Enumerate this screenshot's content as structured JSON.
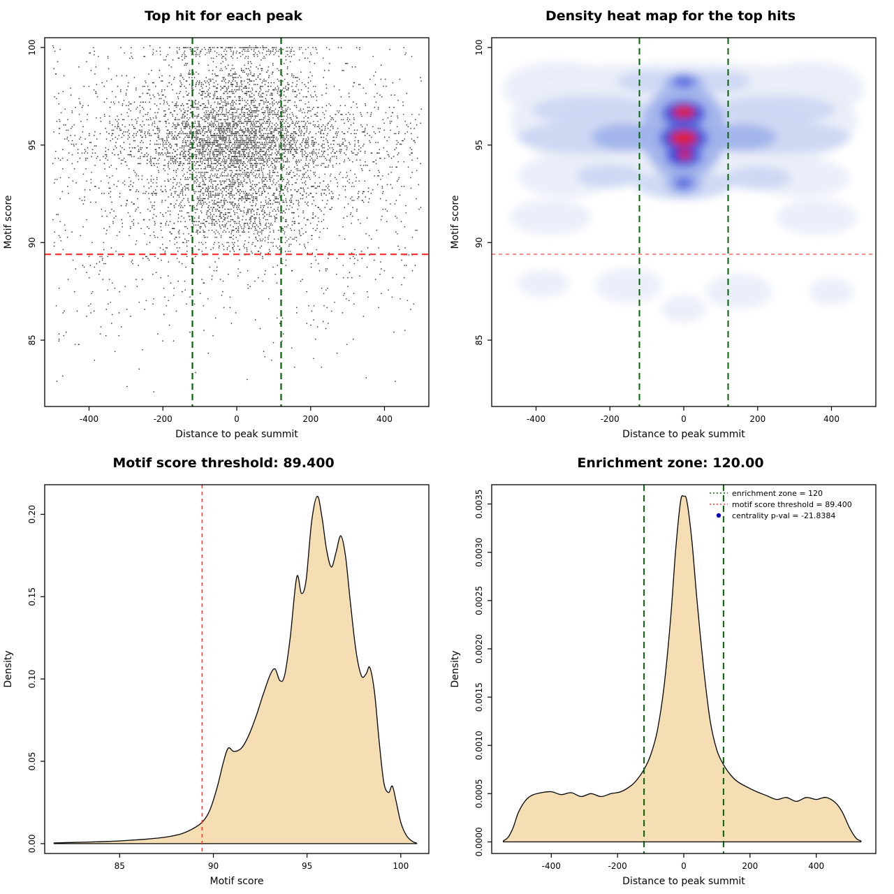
{
  "page": {
    "background": "#ffffff"
  },
  "chart_data": [
    {
      "type": "scatter",
      "title": "Top hit for each peak",
      "xlabel": "Distance to peak summit",
      "ylabel": "Motif score",
      "xlim": [
        -520,
        520
      ],
      "ylim": [
        81.6,
        100.5
      ],
      "xticks": [
        -400,
        -200,
        0,
        200,
        400
      ],
      "yticks": [
        85,
        90,
        95,
        100
      ],
      "enrichment_zone": 120,
      "motif_score_threshold": 89.4,
      "point_color": "#000000",
      "vlines": [
        {
          "x": -120,
          "color": "#006400",
          "style": "dashed",
          "w": 2.2
        },
        {
          "x": 120,
          "color": "#006400",
          "style": "dashed",
          "w": 2.2
        }
      ],
      "hlines": [
        {
          "y": 89.4,
          "color": "#ff3333",
          "style": "dashed",
          "w": 2.2
        }
      ],
      "generator": {
        "seed": 20240915,
        "n": 6500,
        "y_quantum": 0.09,
        "clip_y": [
          82,
          100.04
        ],
        "uniform_below_y": 89.5,
        "x_mix": [
          {
            "mean": 0,
            "sd": 110,
            "w": 0.62
          },
          {
            "mean": 0,
            "sd": 260,
            "w": 0.28
          },
          {
            "min": -500,
            "max": 500,
            "w": 0.1
          }
        ],
        "y_mix": [
          {
            "mean": 95.5,
            "sd": 0.55,
            "w": 0.22
          },
          {
            "mean": 94.5,
            "sd": 0.5,
            "w": 0.16
          },
          {
            "mean": 96.8,
            "sd": 0.55,
            "w": 0.14
          },
          {
            "mean": 93.2,
            "sd": 0.7,
            "w": 0.12
          },
          {
            "mean": 98.2,
            "sd": 0.5,
            "w": 0.08
          },
          {
            "mean": 92.0,
            "sd": 1.1,
            "w": 0.12
          },
          {
            "mean": 90.6,
            "sd": 0.9,
            "w": 0.06
          },
          {
            "mean": 99.8,
            "sd": 0.25,
            "w": 0.04
          },
          {
            "mean": 88.0,
            "sd": 2.2,
            "w": 0.06
          }
        ]
      }
    },
    {
      "type": "heatmap",
      "title": "Density heat map for the top hits",
      "xlabel": "Distance to peak summit",
      "ylabel": "Motif score",
      "xlim": [
        -520,
        520
      ],
      "ylim": [
        81.6,
        100.5
      ],
      "xticks": [
        -400,
        -200,
        0,
        200,
        400
      ],
      "yticks": [
        85,
        90,
        95,
        100
      ],
      "enrichment_zone": 120,
      "motif_score_threshold": 89.4,
      "heat_colors": [
        "#e9eef9",
        "#ccd7f3",
        "#9fb2ea",
        "#5d70e0",
        "#2030d0",
        "#ee2020"
      ],
      "blobs": [
        [
          0,
          96.2,
          470,
          3.0,
          1
        ],
        [
          -340,
          97.9,
          150,
          1.4,
          1
        ],
        [
          340,
          97.9,
          150,
          1.4,
          1
        ],
        [
          -320,
          93.4,
          130,
          1.1,
          1
        ],
        [
          320,
          93.3,
          130,
          1.0,
          1
        ],
        [
          0,
          98.3,
          430,
          0.9,
          1
        ],
        [
          -360,
          91.3,
          110,
          0.9,
          1
        ],
        [
          360,
          91.3,
          110,
          0.9,
          1
        ],
        [
          -150,
          87.8,
          90,
          0.9,
          1
        ],
        [
          150,
          87.5,
          90,
          0.9,
          1
        ],
        [
          0,
          86.6,
          60,
          0.7,
          1
        ],
        [
          -380,
          87.9,
          70,
          0.7,
          1
        ],
        [
          400,
          87.5,
          60,
          0.7,
          1
        ],
        [
          -240,
          95.4,
          210,
          0.85,
          2
        ],
        [
          240,
          95.4,
          210,
          0.85,
          2
        ],
        [
          -250,
          96.8,
          160,
          0.75,
          2
        ],
        [
          250,
          96.8,
          160,
          0.75,
          2
        ],
        [
          0,
          92.95,
          130,
          0.75,
          2
        ],
        [
          -90,
          98.25,
          90,
          0.55,
          2
        ],
        [
          90,
          98.25,
          90,
          0.55,
          2
        ],
        [
          -200,
          93.4,
          90,
          0.6,
          2
        ],
        [
          200,
          93.3,
          90,
          0.6,
          2
        ],
        [
          0,
          95.7,
          115,
          2.5,
          3
        ],
        [
          0,
          93.05,
          50,
          0.6,
          3
        ],
        [
          0,
          98.25,
          55,
          0.5,
          3
        ],
        [
          -140,
          95.4,
          110,
          0.7,
          3
        ],
        [
          140,
          95.4,
          110,
          0.7,
          3
        ],
        [
          0,
          96.6,
          62,
          0.75,
          4
        ],
        [
          0,
          95.35,
          68,
          0.8,
          4
        ],
        [
          0,
          94.45,
          52,
          0.62,
          4
        ],
        [
          0,
          98.25,
          30,
          0.34,
          4
        ],
        [
          0,
          93.05,
          26,
          0.35,
          4
        ],
        [
          0,
          96.65,
          46,
          0.5,
          5
        ],
        [
          0,
          95.35,
          52,
          0.58,
          5
        ],
        [
          0,
          94.45,
          36,
          0.42,
          5
        ],
        [
          0,
          96.7,
          30,
          0.32,
          6
        ],
        [
          0,
          95.35,
          36,
          0.4,
          6
        ],
        [
          3,
          94.5,
          18,
          0.24,
          6
        ]
      ],
      "vlines": [
        {
          "x": -120,
          "color": "#006400",
          "style": "dashed",
          "w": 2
        },
        {
          "x": 120,
          "color": "#006400",
          "style": "dashed",
          "w": 2
        }
      ],
      "hlines": [
        {
          "y": 89.4,
          "color": "#ff5555",
          "style": "shortdash",
          "w": 1.4
        }
      ]
    },
    {
      "type": "density",
      "title": "Motif score threshold: 89.400",
      "xlabel": "Motif score",
      "ylabel": "Density",
      "xlim": [
        81,
        101.5
      ],
      "ylim": [
        -0.006,
        0.218
      ],
      "xticks": [
        85,
        90,
        95,
        100
      ],
      "yticks": [
        0,
        0.05,
        0.1,
        0.15,
        0.2
      ],
      "ytick_labels": [
        "0.00",
        "0.05",
        "0.10",
        "0.15",
        "0.20"
      ],
      "fill": "#f5deb3",
      "motif_score_threshold": 89.4,
      "vlines": [
        {
          "x": 89.4,
          "color": "#ff3333",
          "style": "shortdash",
          "w": 1.6
        }
      ],
      "curve": [
        [
          81.5,
          0.0004
        ],
        [
          82.5,
          0.0007
        ],
        [
          83.5,
          0.001
        ],
        [
          84.5,
          0.0014
        ],
        [
          85.5,
          0.002
        ],
        [
          86.5,
          0.0028
        ],
        [
          87.5,
          0.004
        ],
        [
          88.3,
          0.006
        ],
        [
          88.9,
          0.009
        ],
        [
          89.4,
          0.013
        ],
        [
          89.8,
          0.02
        ],
        [
          90.2,
          0.034
        ],
        [
          90.55,
          0.05
        ],
        [
          90.8,
          0.058
        ],
        [
          91.1,
          0.056
        ],
        [
          91.5,
          0.058
        ],
        [
          91.9,
          0.066
        ],
        [
          92.3,
          0.078
        ],
        [
          92.7,
          0.092
        ],
        [
          93.05,
          0.103
        ],
        [
          93.3,
          0.106
        ],
        [
          93.55,
          0.099
        ],
        [
          93.8,
          0.102
        ],
        [
          94.1,
          0.125
        ],
        [
          94.45,
          0.162
        ],
        [
          94.7,
          0.152
        ],
        [
          94.95,
          0.16
        ],
        [
          95.25,
          0.196
        ],
        [
          95.55,
          0.211
        ],
        [
          95.8,
          0.198
        ],
        [
          96.05,
          0.178
        ],
        [
          96.3,
          0.168
        ],
        [
          96.55,
          0.177
        ],
        [
          96.8,
          0.187
        ],
        [
          97.05,
          0.175
        ],
        [
          97.3,
          0.148
        ],
        [
          97.6,
          0.118
        ],
        [
          97.9,
          0.102
        ],
        [
          98.15,
          0.103
        ],
        [
          98.35,
          0.107
        ],
        [
          98.6,
          0.092
        ],
        [
          98.85,
          0.062
        ],
        [
          99.1,
          0.037
        ],
        [
          99.35,
          0.031
        ],
        [
          99.55,
          0.035
        ],
        [
          99.75,
          0.026
        ],
        [
          100,
          0.013
        ],
        [
          100.3,
          0.005
        ],
        [
          100.6,
          0.0015
        ],
        [
          100.85,
          0.0003
        ]
      ]
    },
    {
      "type": "density",
      "title": "Enrichment zone: 120.00",
      "xlabel": "Distance to peak summit",
      "ylabel": "Density",
      "xlim": [
        -580,
        580
      ],
      "ylim": [
        -0.00012,
        0.0037
      ],
      "xticks": [
        -400,
        -200,
        0,
        200,
        400
      ],
      "yticks": [
        0,
        0.0005,
        0.001,
        0.0015,
        0.002,
        0.0025,
        0.003,
        0.0035
      ],
      "ytick_labels": [
        "0.0000",
        "0.0005",
        "0.0010",
        "0.0015",
        "0.0020",
        "0.0025",
        "0.0030",
        "0.0035"
      ],
      "fill": "#f5deb3",
      "enrichment_zone": 120,
      "motif_score_threshold": 89.4,
      "centrality_p_val": "-21.8384",
      "vlines": [
        {
          "x": -120,
          "color": "#006400",
          "style": "dashed",
          "w": 2
        },
        {
          "x": 120,
          "color": "#006400",
          "style": "dashed",
          "w": 2
        }
      ],
      "legend": [
        {
          "label": "enrichment zone = 120",
          "color": "#006400",
          "marker": "dotted"
        },
        {
          "label": "motif score threshold = 89.400",
          "color": "#ff3333",
          "marker": "dotted"
        },
        {
          "label": "centrality p-val = -21.8384",
          "color": "#0000bb",
          "marker": "point"
        }
      ],
      "curve": [
        [
          -545,
          1e-05
        ],
        [
          -530,
          5e-05
        ],
        [
          -515,
          0.00015
        ],
        [
          -500,
          0.0003
        ],
        [
          -480,
          0.00042
        ],
        [
          -460,
          0.00048
        ],
        [
          -430,
          0.00051
        ],
        [
          -400,
          0.00052
        ],
        [
          -370,
          0.00049
        ],
        [
          -340,
          0.00051
        ],
        [
          -310,
          0.00047
        ],
        [
          -280,
          0.0005
        ],
        [
          -250,
          0.00047
        ],
        [
          -220,
          0.0005
        ],
        [
          -190,
          0.00052
        ],
        [
          -160,
          0.00058
        ],
        [
          -140,
          0.00065
        ],
        [
          -120,
          0.00075
        ],
        [
          -100,
          0.0009
        ],
        [
          -80,
          0.00115
        ],
        [
          -60,
          0.0016
        ],
        [
          -40,
          0.0023
        ],
        [
          -25,
          0.003
        ],
        [
          -10,
          0.00352
        ],
        [
          0,
          0.00358
        ],
        [
          10,
          0.00352
        ],
        [
          25,
          0.0031
        ],
        [
          40,
          0.0025
        ],
        [
          60,
          0.0018
        ],
        [
          80,
          0.00125
        ],
        [
          100,
          0.00095
        ],
        [
          120,
          0.0008
        ],
        [
          140,
          0.0007
        ],
        [
          160,
          0.00063
        ],
        [
          190,
          0.00057
        ],
        [
          220,
          0.00052
        ],
        [
          250,
          0.00048
        ],
        [
          280,
          0.00044
        ],
        [
          310,
          0.00046
        ],
        [
          340,
          0.00042
        ],
        [
          370,
          0.00046
        ],
        [
          400,
          0.00044
        ],
        [
          430,
          0.00046
        ],
        [
          460,
          0.0004
        ],
        [
          480,
          0.0003
        ],
        [
          500,
          0.00015
        ],
        [
          520,
          4e-05
        ],
        [
          535,
          1e-05
        ]
      ]
    }
  ]
}
